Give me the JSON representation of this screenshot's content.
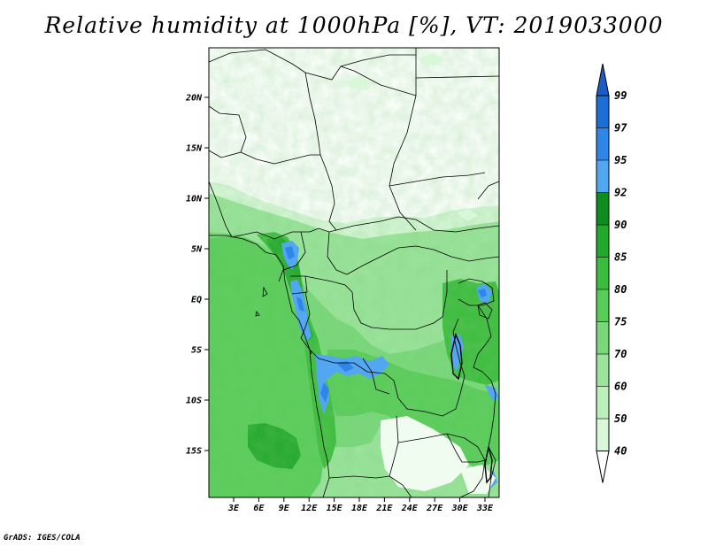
{
  "title": "Relative humidity at 1000hPa [%], VT: 2019033000",
  "credit": "GrADS: IGES/COLA",
  "map": {
    "lat_ticks": [
      "20N",
      "15N",
      "10N",
      "5N",
      "EQ",
      "5S",
      "10S",
      "15S"
    ],
    "lon_ticks": [
      "3E",
      "6E",
      "9E",
      "12E",
      "15E",
      "18E",
      "21E",
      "24E",
      "27E",
      "30E",
      "33E"
    ]
  },
  "legend": {
    "levels": [
      "99",
      "97",
      "95",
      "92",
      "90",
      "85",
      "80",
      "75",
      "70",
      "60",
      "50",
      "40"
    ],
    "colors": [
      "#1e6ed8",
      "#2f86e8",
      "#53a6f0",
      "#0f8c1e",
      "#22a82a",
      "#3cbc3c",
      "#58cc58",
      "#7ad87a",
      "#9ce49c",
      "#bdefbd",
      "#d9f7d9",
      "#f0fcf0"
    ],
    "over_color": "#1d5cc4",
    "under_color": "#ffffff"
  },
  "colors": {
    "no_data": "#ffffff",
    "border": "#000000"
  }
}
